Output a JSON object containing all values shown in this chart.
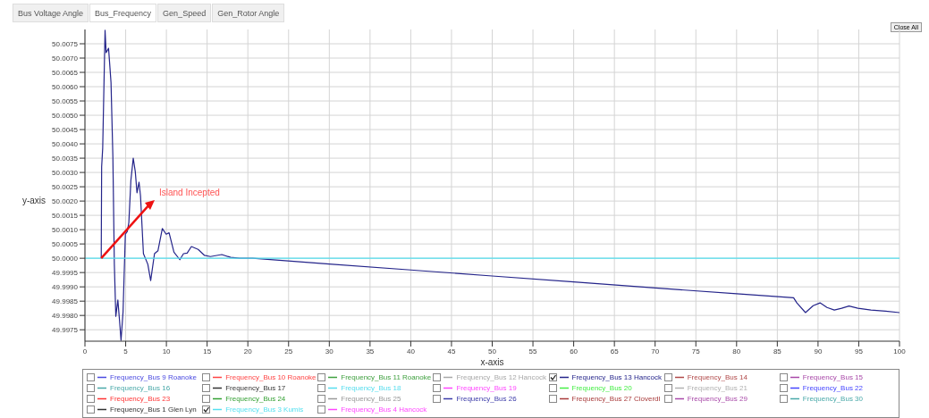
{
  "chart_data": {
    "type": "line",
    "xlabel": "x-axis",
    "ylabel": "y-axis",
    "xlim": [
      0,
      100
    ],
    "ylim": [
      49.9971,
      50.008
    ],
    "xticks": [
      0,
      5,
      10,
      15,
      20,
      25,
      30,
      35,
      40,
      45,
      50,
      55,
      60,
      65,
      70,
      75,
      80,
      85,
      90,
      95,
      100
    ],
    "yticks": [
      {
        "value": 49.9975,
        "label": "49.9975"
      },
      {
        "value": 49.998,
        "label": "49.9980"
      },
      {
        "value": 49.9985,
        "label": "49.9985"
      },
      {
        "value": 49.999,
        "label": "49.9990"
      },
      {
        "value": 49.9995,
        "label": "49.9995"
      },
      {
        "value": 50,
        "label": "50.0000"
      },
      {
        "value": 50.0005,
        "label": "50.0005"
      },
      {
        "value": 50.001,
        "label": "50.0010"
      },
      {
        "value": 50.0015,
        "label": "50.0015"
      },
      {
        "value": 50.002,
        "label": "50.0020"
      },
      {
        "value": 50.0025,
        "label": "50.0025"
      },
      {
        "value": 50.003,
        "label": "50.0030"
      },
      {
        "value": 50.0035,
        "label": "50.0035"
      },
      {
        "value": 50.004,
        "label": "50.0040"
      },
      {
        "value": 50.0045,
        "label": "50.0045"
      },
      {
        "value": 50.005,
        "label": "50.0050"
      },
      {
        "value": 50.0055,
        "label": "50.0055"
      },
      {
        "value": 50.006,
        "label": "50.0060"
      },
      {
        "value": 50.0065,
        "label": "50.0065"
      },
      {
        "value": 50.007,
        "label": "50.0070"
      },
      {
        "value": 50.0075,
        "label": "50.0075"
      }
    ],
    "grid": true,
    "legend": "bottom",
    "marker": "none",
    "line_style": "solid",
    "annotations": [
      "Bus Voltage Angle",
      "Bus_Frequency",
      "Gen_Speed",
      "Gen_Rotor Angle",
      "Close All",
      "Island Incepted"
    ],
    "series": [
      {
        "name": "Frequency_Bus 9 Roanoke",
        "color": "#4a4ae0"
      },
      {
        "name": "Frequency_Bus 10 Roanoke",
        "color": "#ff4444"
      },
      {
        "name": "Frequency_Bus 11 Roanoke",
        "color": "#3fa03f"
      },
      {
        "name": "Frequency_Bus 12 Hancock",
        "color": "#a8a8a8"
      },
      {
        "name": "Frequency_Bus 13 Hancock",
        "color": "#24248a",
        "x": [
          2,
          2.05,
          2.18,
          2.47,
          2.6,
          2.9,
          3.07,
          3.2,
          3.43,
          3.61,
          3.79,
          4.04,
          4.25,
          4.43,
          4.68,
          4.96,
          5.2,
          5.39,
          5.64,
          5.93,
          6.18,
          6.39,
          6.64,
          6.82,
          7.18,
          7.72,
          8.07,
          8.54,
          8.96,
          9.5,
          9.97,
          10.33,
          10.93,
          11.65,
          12.1,
          12.55,
          13.07,
          13.9,
          14.68,
          15.4,
          16.8,
          17.9,
          19,
          20.6,
          30,
          40,
          50,
          60,
          70,
          80,
          87,
          87.4,
          88.46,
          89.4,
          90.25,
          91.1,
          92,
          92.9,
          93.8,
          94.9,
          96.5,
          98.3,
          100
        ],
        "values": [
          50,
          50.0032,
          50.00385,
          50.00797,
          50.00719,
          50.00734,
          50.00667,
          50.00615,
          50.00354,
          49.99979,
          49.99797,
          49.99854,
          49.99781,
          49.99713,
          49.99813,
          50.00084,
          50.00094,
          50.00125,
          50.00272,
          50.0035,
          50.00303,
          50.00229,
          50.00266,
          50.00219,
          50.00016,
          49.99979,
          49.99922,
          50.00016,
          50.00026,
          50.00104,
          50.00084,
          50.00089,
          50.00021,
          49.99995,
          50.00016,
          50.00018,
          50.00041,
          50.00031,
          50.0001,
          50.00006,
          50.00013,
          50.00003,
          50,
          50,
          49.9998,
          49.99959,
          49.99938,
          49.99917,
          49.99896,
          49.99876,
          49.99862,
          49.99844,
          49.9981,
          49.99834,
          49.99844,
          49.99828,
          49.99819,
          49.99825,
          49.99833,
          49.99825,
          49.99819,
          49.99815,
          49.9981
        ]
      },
      {
        "name": "Frequency_Bus 14",
        "color": "#b04848"
      },
      {
        "name": "Frequency_Bus 15",
        "color": "#a848a8"
      },
      {
        "name": "Frequency_Bus 16",
        "color": "#48a8a8"
      },
      {
        "name": "Frequency_Bus 17",
        "color": "#333333"
      },
      {
        "name": "Frequency_Bus 18",
        "color": "#55ddee"
      },
      {
        "name": "Frequency_Bus 19",
        "color": "#ff44ff"
      },
      {
        "name": "Frequency_Bus 20",
        "color": "#44ee44"
      },
      {
        "name": "Frequency_Bus 21",
        "color": "#b0b0b0"
      },
      {
        "name": "Frequency_Bus 22",
        "color": "#4444ff"
      },
      {
        "name": "Frequency_Bus 23",
        "color": "#ff3333"
      },
      {
        "name": "Frequency_Bus 24",
        "color": "#33a033"
      },
      {
        "name": "Frequency_Bus 25",
        "color": "#999999"
      },
      {
        "name": "Frequency_Bus 26",
        "color": "#3a3aa8"
      },
      {
        "name": "Frequency_Bus 27 Cloverdl",
        "color": "#a83a3a"
      },
      {
        "name": "Frequency_Bus 29",
        "color": "#a848a8"
      },
      {
        "name": "Frequency_Bus 30",
        "color": "#48a8a8"
      },
      {
        "name": "Frequency_Bus 1 Glen Lyn",
        "color": "#333333"
      },
      {
        "name": "Frequency_Bus 3 Kumis",
        "color": "#55e0f0",
        "x": [
          0,
          100
        ],
        "values": [
          50,
          50
        ]
      },
      {
        "name": "Frequency_Bus 4 Hancock",
        "color": "#ff44ff"
      }
    ]
  }
}
